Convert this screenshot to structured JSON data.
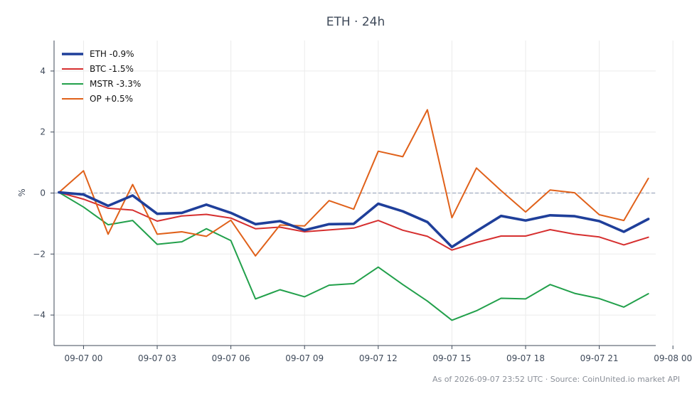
{
  "chart_data": {
    "type": "line",
    "title": "ETH · 24h",
    "xlabel": "",
    "ylabel": "%",
    "ylim": [
      -5,
      5
    ],
    "yticks": [
      4,
      2,
      0,
      -2,
      -4
    ],
    "ytick_labels": [
      "4",
      "2",
      "0",
      "−2",
      "−4"
    ],
    "xlim": [
      -1.2,
      23.3
    ],
    "xticks": [
      0,
      3,
      6,
      9,
      12,
      15,
      18,
      21,
      24
    ],
    "xtick_labels": [
      "09-07 00",
      "09-07 03",
      "09-07 06",
      "09-07 09",
      "09-07 12",
      "09-07 15",
      "09-07 18",
      "09-07 21",
      "09-08 00"
    ],
    "x": [
      -1,
      0,
      1,
      2,
      3,
      4,
      5,
      6,
      7,
      8,
      9,
      10,
      11,
      12,
      13,
      14,
      15,
      16,
      17,
      18,
      19,
      20,
      21,
      22,
      23
    ],
    "grid": true,
    "legend_position": "top-left",
    "reference_line": 0,
    "series": [
      {
        "name": "ETH -0.9%",
        "color": "#1f3f9a",
        "values": [
          0.02,
          -0.05,
          -0.42,
          -0.08,
          -0.68,
          -0.65,
          -0.38,
          -0.65,
          -1.02,
          -0.92,
          -1.22,
          -1.02,
          -1.01,
          -0.35,
          -0.6,
          -0.95,
          -1.77,
          -1.25,
          -0.75,
          -0.9,
          -0.73,
          -0.76,
          -0.92,
          -1.27,
          -0.85
        ]
      },
      {
        "name": "BTC -1.5%",
        "color": "#d62f2f",
        "values": [
          0.02,
          -0.2,
          -0.5,
          -0.56,
          -0.92,
          -0.75,
          -0.7,
          -0.82,
          -1.17,
          -1.12,
          -1.27,
          -1.21,
          -1.15,
          -0.9,
          -1.22,
          -1.42,
          -1.87,
          -1.62,
          -1.41,
          -1.41,
          -1.2,
          -1.35,
          -1.44,
          -1.7,
          -1.45
        ]
      },
      {
        "name": "MSTR -3.3%",
        "color": "#22a04b",
        "values": [
          0.02,
          -0.46,
          -1.04,
          -0.9,
          -1.68,
          -1.6,
          -1.17,
          -1.56,
          -3.47,
          -3.17,
          -3.4,
          -3.02,
          -2.97,
          -2.43,
          -3.0,
          -3.54,
          -4.17,
          -3.86,
          -3.45,
          -3.47,
          -3.0,
          -3.29,
          -3.46,
          -3.74,
          -3.3
        ]
      },
      {
        "name": "OP +0.5%",
        "color": "#e0611a",
        "values": [
          0.02,
          0.73,
          -1.35,
          0.28,
          -1.35,
          -1.27,
          -1.42,
          -0.89,
          -2.06,
          -1.05,
          -1.08,
          -0.25,
          -0.53,
          1.37,
          1.19,
          2.73,
          -0.81,
          0.82,
          0.08,
          -0.62,
          0.1,
          0.01,
          -0.71,
          -0.9,
          0.48
        ]
      }
    ]
  },
  "footnote": "As of 2026-09-07 23:52 UTC · Source: CoinUnited.io market API"
}
